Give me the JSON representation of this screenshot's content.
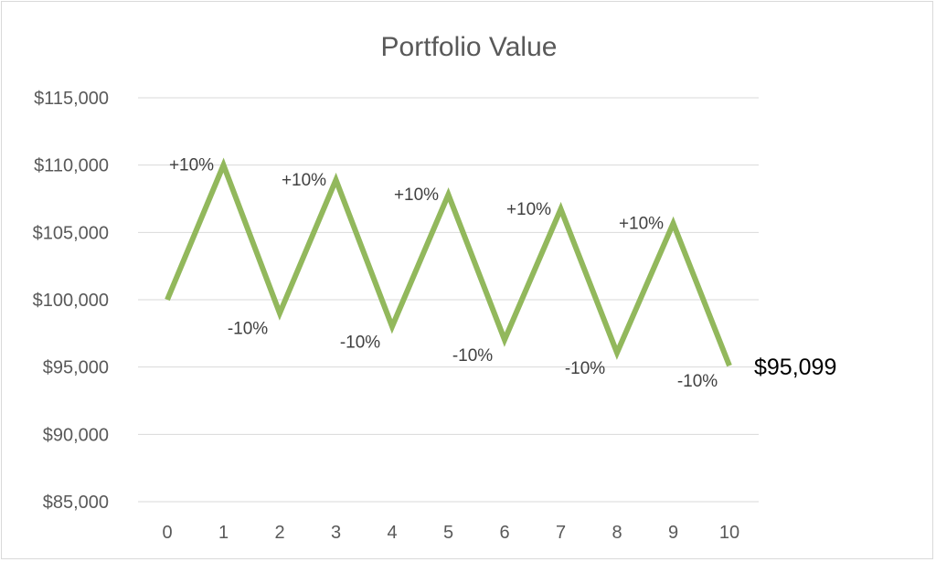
{
  "chart_data": {
    "type": "line",
    "title": "Portfolio Value",
    "x": [
      0,
      1,
      2,
      3,
      4,
      5,
      6,
      7,
      8,
      9,
      10
    ],
    "series": [
      {
        "values": [
          100000,
          110000,
          99000,
          108900,
          98010,
          107811,
          97030,
          106733,
          96060,
          105666,
          95099
        ]
      }
    ],
    "point_labels": [
      "",
      "+10%",
      "-10%",
      "+10%",
      "-10%",
      "+10%",
      "-10%",
      "+10%",
      "-10%",
      "+10%",
      "-10%"
    ],
    "end_label": "$95,099",
    "ylim": [
      85000,
      115000
    ],
    "yticks": [
      85000,
      90000,
      95000,
      100000,
      105000,
      110000,
      115000
    ],
    "ytick_labels": [
      "$85,000",
      "$90,000",
      "$95,000",
      "$100,000",
      "$105,000",
      "$110,000",
      "$115,000"
    ],
    "xtick_labels": [
      "0",
      "1",
      "2",
      "3",
      "4",
      "5",
      "6",
      "7",
      "8",
      "9",
      "10"
    ],
    "grid": true,
    "legend": "none",
    "line_color": "#92b85c"
  }
}
